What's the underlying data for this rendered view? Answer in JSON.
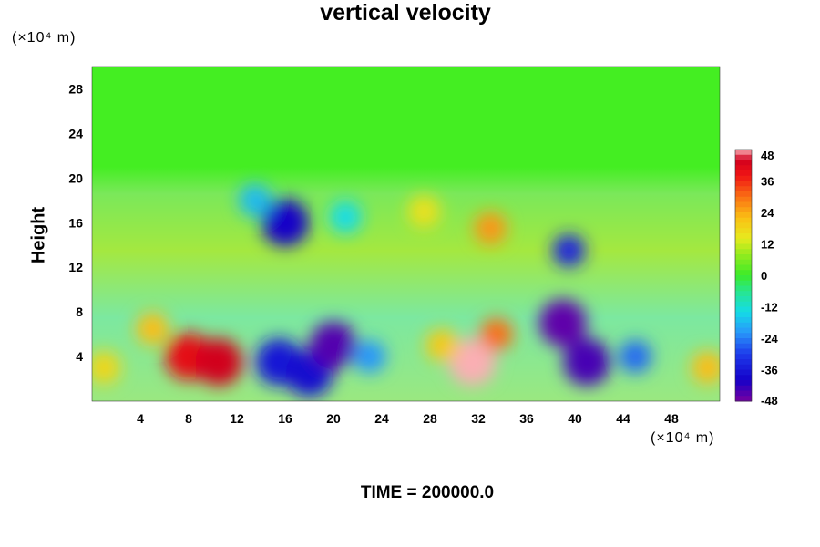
{
  "chart_data": {
    "type": "heatmap",
    "title": "vertical velocity",
    "xlabel": "",
    "ylabel": "Height",
    "x_unit": "(×10⁴ m)",
    "y_unit": "(×10⁴ m)",
    "xlim": [
      0,
      52
    ],
    "ylim": [
      0,
      30
    ],
    "x_ticks": [
      4,
      8,
      12,
      16,
      20,
      24,
      28,
      32,
      36,
      40,
      44,
      48
    ],
    "y_ticks": [
      4,
      8,
      12,
      16,
      20,
      24,
      28
    ],
    "colorbar_ticks": [
      48,
      36,
      24,
      12,
      0,
      -12,
      -24,
      -36,
      -48
    ],
    "colorbar_range": [
      -48,
      48
    ],
    "footer": "TIME = 200000.0",
    "features": [
      {
        "x": 8,
        "y": 4,
        "value": 40
      },
      {
        "x": 10.5,
        "y": 3.5,
        "value": 44
      },
      {
        "x": 5,
        "y": 6.5,
        "value": 22
      },
      {
        "x": 1,
        "y": 3,
        "value": 18
      },
      {
        "x": 15.5,
        "y": 3.5,
        "value": -36
      },
      {
        "x": 18,
        "y": 2.5,
        "value": -38
      },
      {
        "x": 20,
        "y": 5,
        "value": -45
      },
      {
        "x": 23,
        "y": 4,
        "value": -22
      },
      {
        "x": 31.5,
        "y": 3.5,
        "value": 52
      },
      {
        "x": 33.5,
        "y": 6,
        "value": 30
      },
      {
        "x": 29,
        "y": 5,
        "value": 20
      },
      {
        "x": 39,
        "y": 7,
        "value": -46
      },
      {
        "x": 41,
        "y": 3.5,
        "value": -44
      },
      {
        "x": 45,
        "y": 4,
        "value": -26
      },
      {
        "x": 51,
        "y": 3,
        "value": 22
      },
      {
        "x": 16,
        "y": 16,
        "value": -40
      },
      {
        "x": 39.5,
        "y": 13.5,
        "value": -34
      },
      {
        "x": 33,
        "y": 15.5,
        "value": 26
      },
      {
        "x": 27.5,
        "y": 17,
        "value": 16
      },
      {
        "x": 13.5,
        "y": 18,
        "value": -18
      },
      {
        "x": 21,
        "y": 16.5,
        "value": -14
      }
    ]
  }
}
